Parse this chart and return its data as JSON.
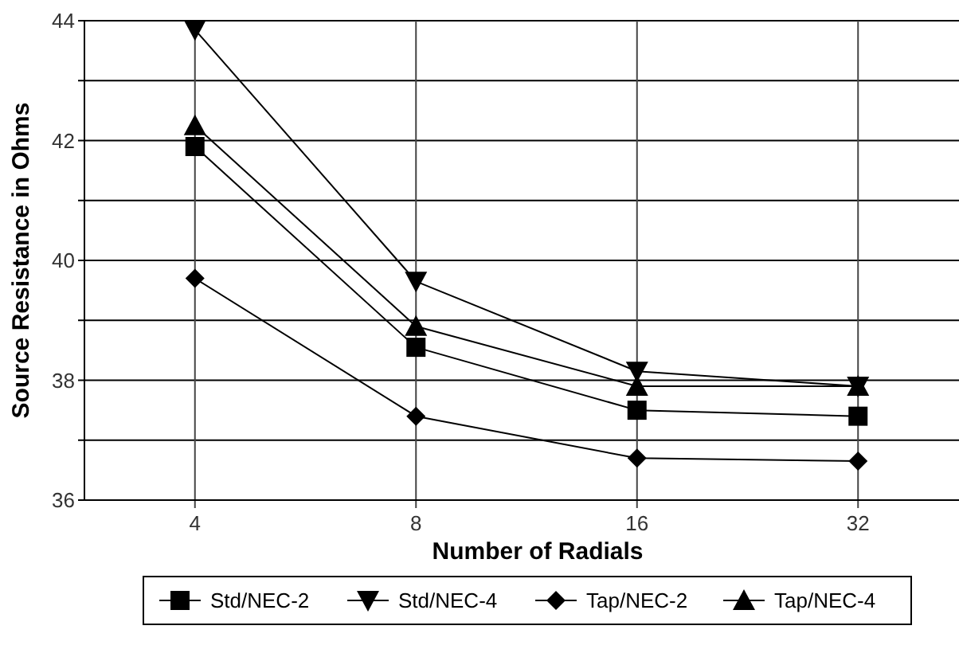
{
  "chart_data": {
    "type": "line",
    "xlabel": "Number of Radials",
    "ylabel": "Source Resistance in Ohms",
    "categories": [
      "4",
      "8",
      "16",
      "32"
    ],
    "ylim": [
      36,
      44
    ],
    "yticks": [
      36,
      {
        "value": 37,
        "label": null
      },
      38,
      {
        "value": 39,
        "label": null
      },
      40,
      {
        "value": 41,
        "label": null
      },
      42,
      {
        "value": 43,
        "label": null
      },
      44
    ],
    "grid": true,
    "legend": "bottom",
    "line_style": "solid",
    "series": [
      {
        "name": "Std/NEC-2",
        "color": "#000000",
        "marker": "square",
        "values": [
          41.9,
          38.55,
          37.5,
          37.4
        ]
      },
      {
        "name": "Std/NEC-4",
        "color": "#000000",
        "marker": "triangle-down",
        "values": [
          43.85,
          39.65,
          38.15,
          37.9
        ]
      },
      {
        "name": "Tap/NEC-2",
        "color": "#000000",
        "marker": "diamond",
        "values": [
          39.7,
          37.4,
          36.7,
          36.65
        ]
      },
      {
        "name": "Tap/NEC-4",
        "color": "#000000",
        "marker": "triangle",
        "values": [
          42.25,
          38.9,
          37.9,
          37.9
        ]
      }
    ]
  }
}
